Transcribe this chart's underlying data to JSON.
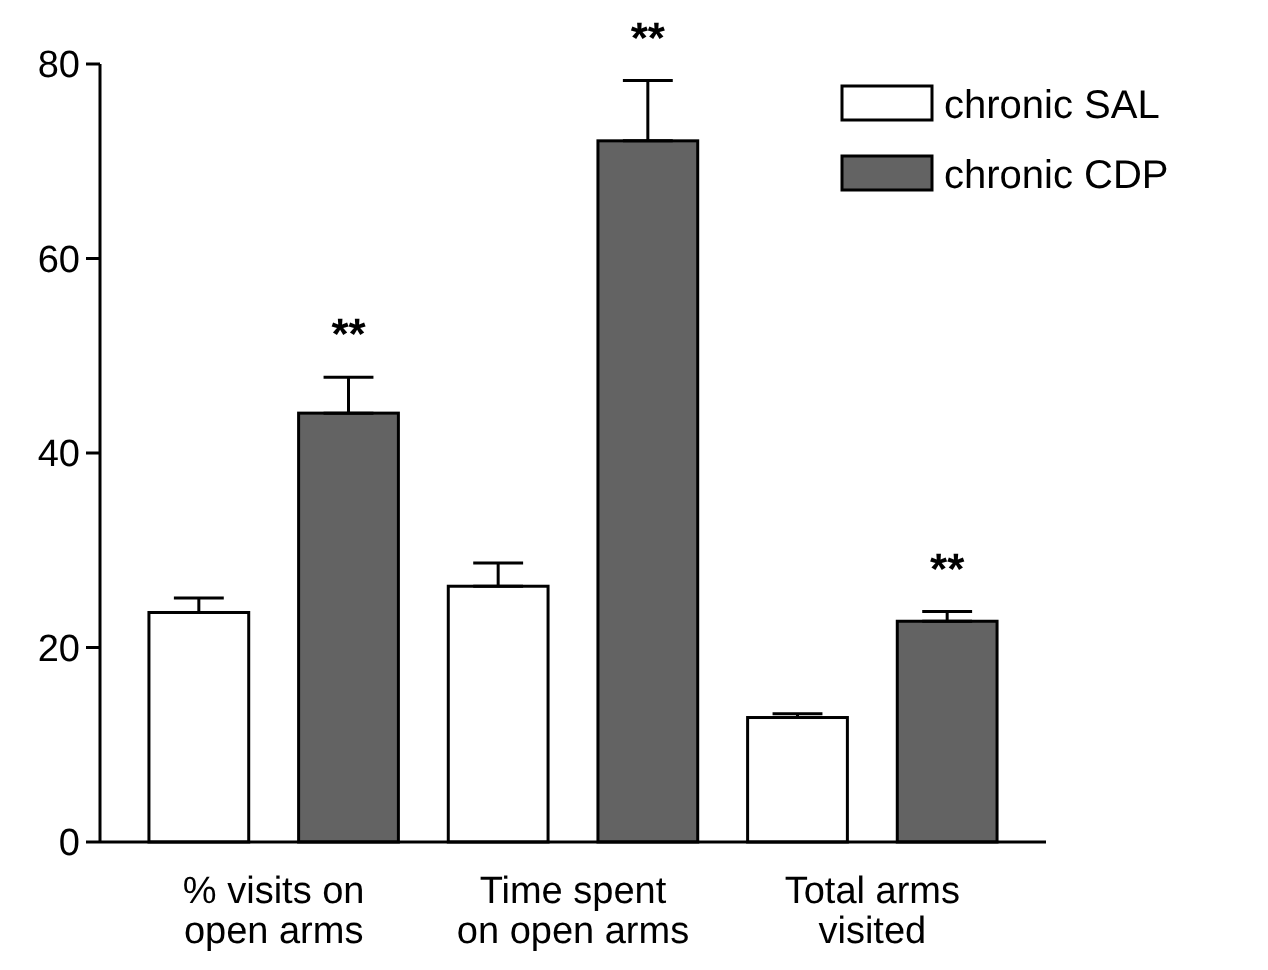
{
  "chart_data": {
    "type": "bar",
    "categories": [
      "% visits on\nopen arms",
      "Time spent\non open arms",
      "Total arms\nvisited"
    ],
    "series": [
      {
        "name": "chronic SAL",
        "color": "#ffffff",
        "values": [
          23.6,
          26.3,
          12.8
        ],
        "errors": [
          [
            23.6,
            25.1
          ],
          [
            26.3,
            28.7
          ],
          [
            12.8,
            13.2
          ]
        ]
      },
      {
        "name": "chronic CDP",
        "color": "#636363",
        "values": [
          44.1,
          72.1,
          22.7
        ],
        "errors": [
          [
            44.1,
            47.8
          ],
          [
            72.1,
            78.3
          ],
          [
            22.7,
            23.7
          ]
        ]
      }
    ],
    "ylim": [
      0,
      80
    ],
    "yticks": [
      0,
      20,
      40,
      60,
      80
    ],
    "grid": false,
    "legend": "top right",
    "annotations": [
      "**",
      "**",
      "**"
    ]
  }
}
